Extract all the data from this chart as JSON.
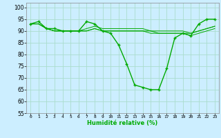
{
  "title": "",
  "xlabel": "Humidité relative (%)",
  "ylabel": "",
  "bg_color": "#cceeff",
  "grid_color": "#aaddcc",
  "line_color": "#00aa00",
  "xlim": [
    -0.5,
    23.5
  ],
  "ylim": [
    55,
    102
  ],
  "yticks": [
    55,
    60,
    65,
    70,
    75,
    80,
    85,
    90,
    95,
    100
  ],
  "xticks": [
    0,
    1,
    2,
    3,
    4,
    5,
    6,
    7,
    8,
    9,
    10,
    11,
    12,
    13,
    14,
    15,
    16,
    17,
    18,
    19,
    20,
    21,
    22,
    23
  ],
  "series": [
    [
      93,
      94,
      91,
      91,
      90,
      90,
      90,
      94,
      93,
      90,
      89,
      84,
      76,
      67,
      66,
      65,
      65,
      74,
      87,
      89,
      88,
      93,
      95,
      95
    ],
    [
      93,
      93,
      91,
      90,
      90,
      90,
      90,
      90,
      91,
      90,
      90,
      90,
      90,
      90,
      90,
      90,
      89,
      89,
      89,
      89,
      89,
      90,
      91,
      92
    ],
    [
      93,
      93,
      91,
      90,
      90,
      90,
      90,
      90,
      91,
      90,
      90,
      90,
      90,
      90,
      90,
      89,
      89,
      89,
      89,
      89,
      88,
      89,
      90,
      91
    ],
    [
      93,
      93,
      91,
      90,
      90,
      90,
      90,
      91,
      92,
      91,
      91,
      91,
      91,
      91,
      91,
      90,
      90,
      90,
      90,
      90,
      89,
      90,
      91,
      92
    ]
  ],
  "marker": "+"
}
